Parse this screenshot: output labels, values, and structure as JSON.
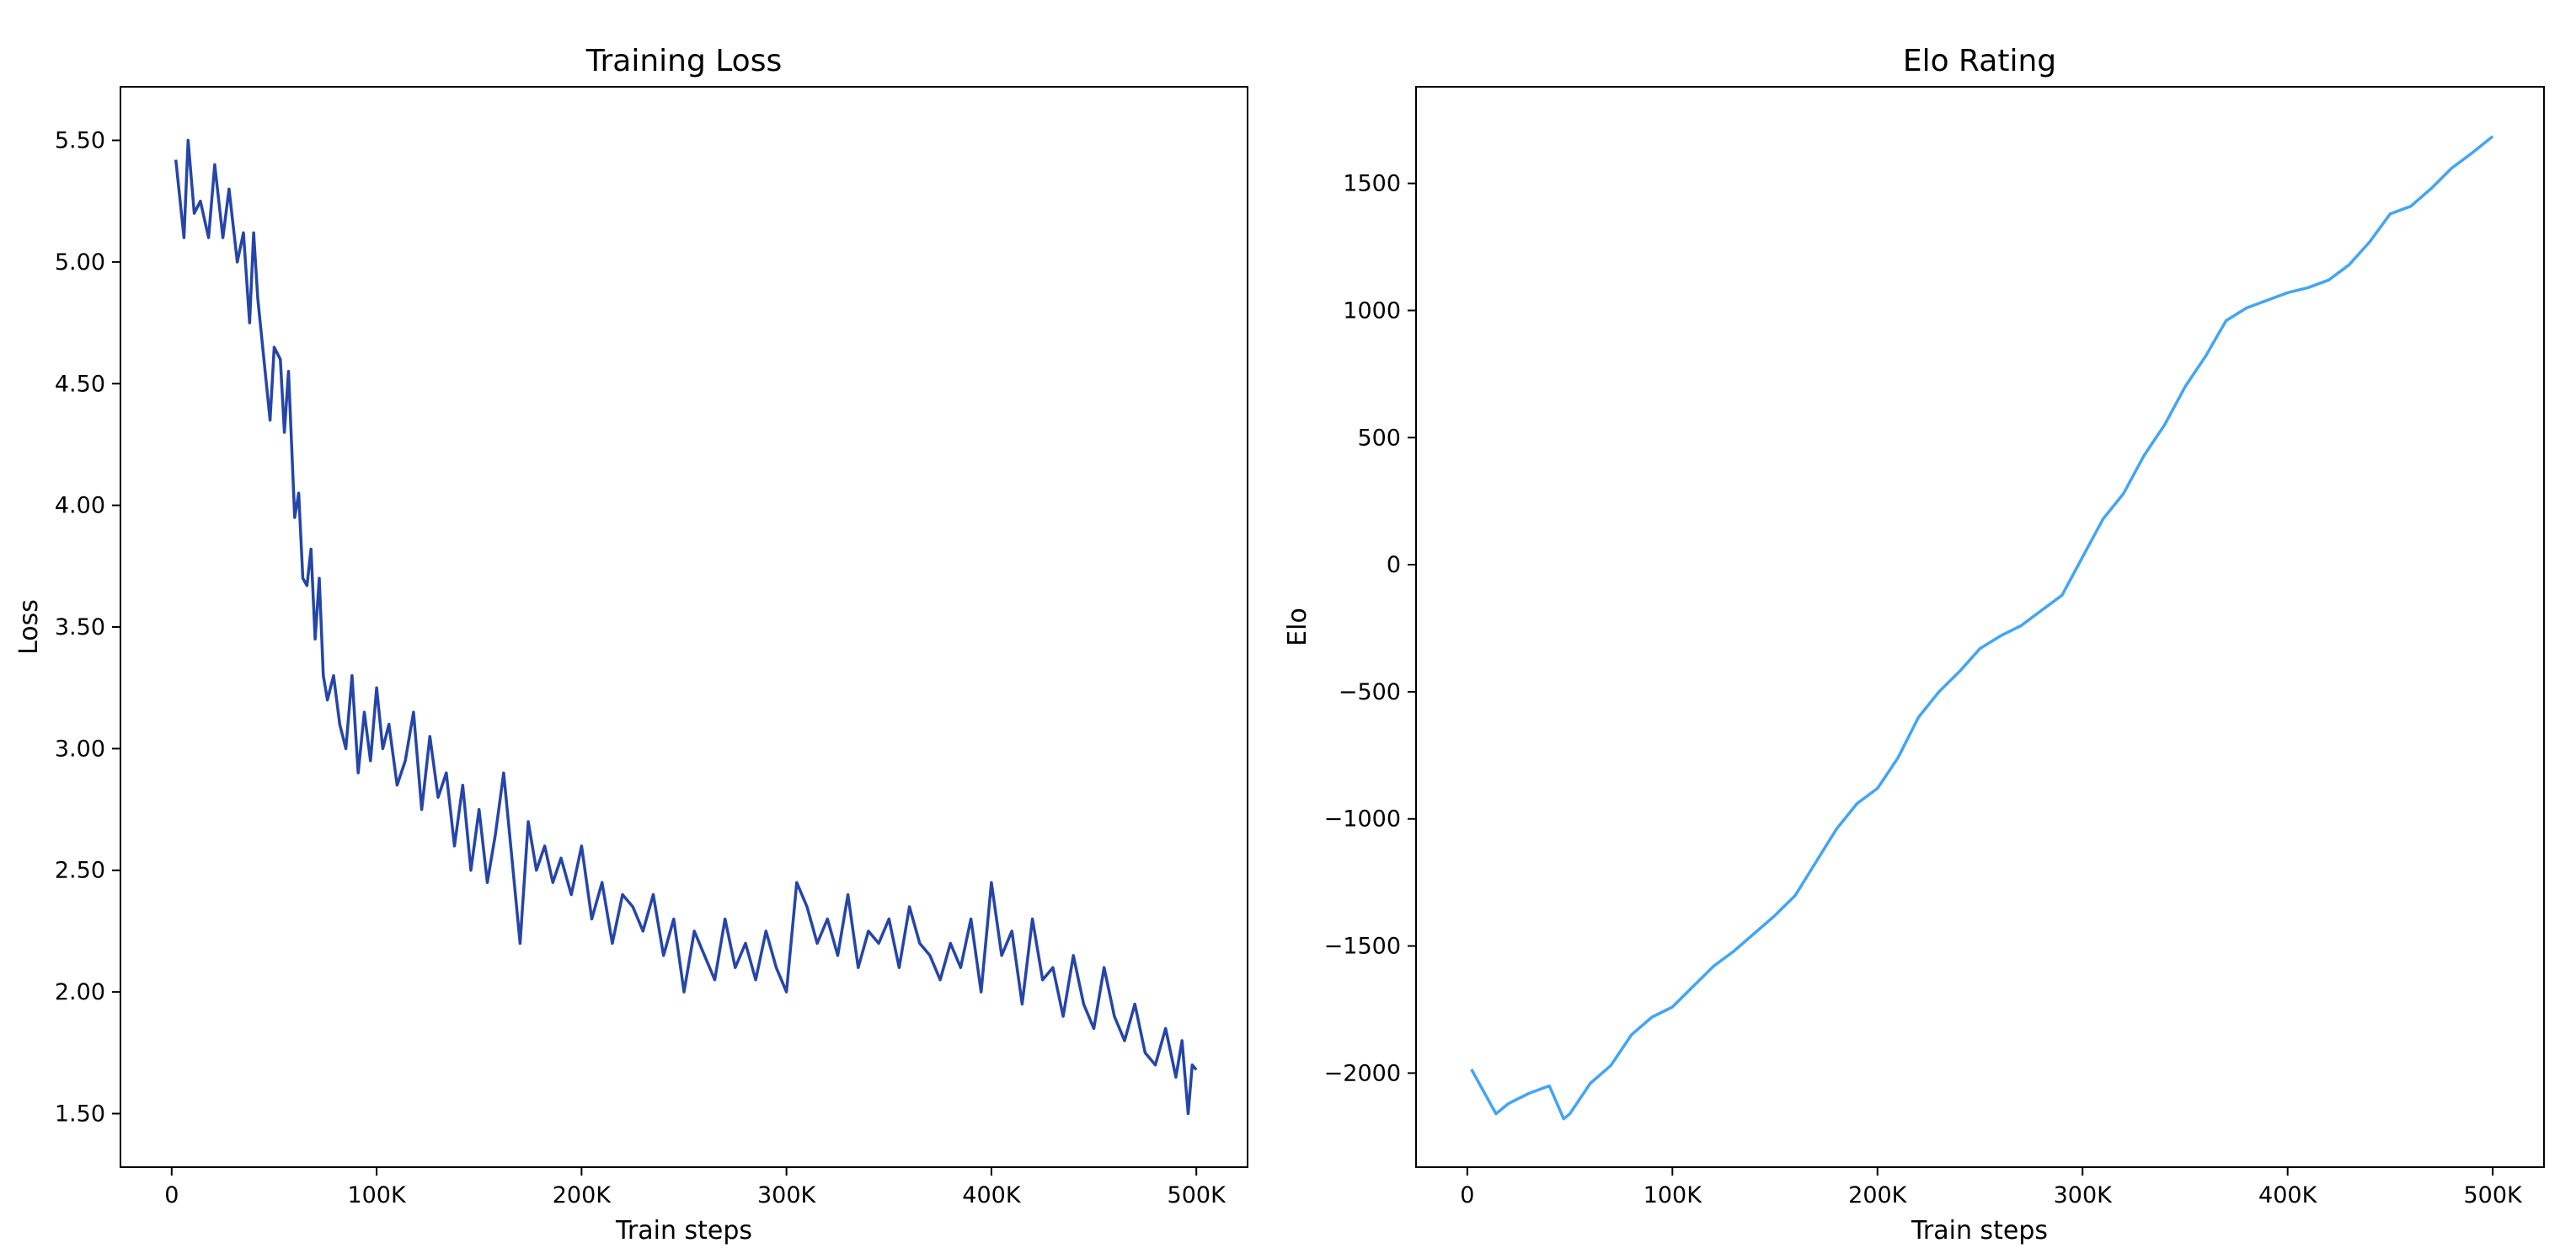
{
  "chart_data": [
    {
      "type": "line",
      "title": "Training Loss",
      "xlabel": "Train steps",
      "ylabel": "Loss",
      "xlim": [
        -25000,
        525000
      ],
      "ylim": [
        1.28,
        5.72
      ],
      "xticks": [
        0,
        100000,
        200000,
        300000,
        400000,
        500000
      ],
      "xtick_labels": [
        "0",
        "100K",
        "200K",
        "300K",
        "400K",
        "500K"
      ],
      "yticks": [
        1.5,
        2.0,
        2.5,
        3.0,
        3.5,
        4.0,
        4.5,
        5.0,
        5.5
      ],
      "ytick_labels": [
        "1.50",
        "2.00",
        "2.50",
        "3.00",
        "3.50",
        "4.00",
        "4.50",
        "5.00",
        "5.50"
      ],
      "grid": false,
      "color": "#2545a8",
      "series": [
        {
          "x": [
            2000,
            6000,
            8000,
            11000,
            14000,
            18000,
            21000,
            25000,
            28000,
            32000,
            35000,
            38000,
            40000,
            42000,
            45000,
            48000,
            50000,
            53000,
            55000,
            57000,
            60000,
            62000,
            64000,
            66000,
            68000,
            70000,
            72000,
            74000,
            76000,
            79000,
            82000,
            85000,
            88000,
            91000,
            94000,
            97000,
            100000,
            103000,
            106000,
            110000,
            114000,
            118000,
            122000,
            126000,
            130000,
            134000,
            138000,
            142000,
            146000,
            150000,
            154000,
            158000,
            162000,
            166000,
            170000,
            174000,
            178000,
            182000,
            186000,
            190000,
            195000,
            200000,
            205000,
            210000,
            215000,
            220000,
            225000,
            230000,
            235000,
            240000,
            245000,
            250000,
            255000,
            260000,
            265000,
            270000,
            275000,
            280000,
            285000,
            290000,
            295000,
            300000,
            305000,
            310000,
            315000,
            320000,
            325000,
            330000,
            335000,
            340000,
            345000,
            350000,
            355000,
            360000,
            365000,
            370000,
            375000,
            380000,
            385000,
            390000,
            395000,
            400000,
            405000,
            410000,
            415000,
            420000,
            425000,
            430000,
            435000,
            440000,
            445000,
            450000,
            455000,
            460000,
            465000,
            470000,
            475000,
            480000,
            485000,
            490000,
            493000,
            496000,
            498000,
            500000
          ],
          "values": [
            5.42,
            5.1,
            5.5,
            5.2,
            5.25,
            5.1,
            5.4,
            5.1,
            5.3,
            5.0,
            5.12,
            4.75,
            5.12,
            4.85,
            4.6,
            4.35,
            4.65,
            4.6,
            4.3,
            4.55,
            3.95,
            4.05,
            3.7,
            3.67,
            3.82,
            3.45,
            3.7,
            3.3,
            3.2,
            3.3,
            3.1,
            3.0,
            3.3,
            2.9,
            3.15,
            2.95,
            3.25,
            3.0,
            3.1,
            2.85,
            2.95,
            3.15,
            2.75,
            3.05,
            2.8,
            2.9,
            2.6,
            2.85,
            2.5,
            2.75,
            2.45,
            2.65,
            2.9,
            2.55,
            2.2,
            2.7,
            2.5,
            2.6,
            2.45,
            2.55,
            2.4,
            2.6,
            2.3,
            2.45,
            2.2,
            2.4,
            2.35,
            2.25,
            2.4,
            2.15,
            2.3,
            2.0,
            2.25,
            2.15,
            2.05,
            2.3,
            2.1,
            2.2,
            2.05,
            2.25,
            2.1,
            2.0,
            2.45,
            2.35,
            2.2,
            2.3,
            2.15,
            2.4,
            2.1,
            2.25,
            2.2,
            2.3,
            2.1,
            2.35,
            2.2,
            2.15,
            2.05,
            2.2,
            2.1,
            2.3,
            2.0,
            2.45,
            2.15,
            2.25,
            1.95,
            2.3,
            2.05,
            2.1,
            1.9,
            2.15,
            1.95,
            1.85,
            2.1,
            1.9,
            1.8,
            1.95,
            1.75,
            1.7,
            1.85,
            1.65,
            1.8,
            1.5,
            1.7,
            1.68
          ]
        }
      ]
    },
    {
      "type": "line",
      "title": "Elo Rating",
      "xlabel": "Train steps",
      "ylabel": "Elo",
      "xlim": [
        -25000,
        525000
      ],
      "ylim": [
        -2370,
        1880
      ],
      "xticks": [
        0,
        100000,
        200000,
        300000,
        400000,
        500000
      ],
      "xtick_labels": [
        "0",
        "100K",
        "200K",
        "300K",
        "400K",
        "500K"
      ],
      "yticks": [
        -2000,
        -1500,
        -1000,
        -500,
        0,
        500,
        1000,
        1500
      ],
      "ytick_labels": [
        "−2000",
        "−1500",
        "−1000",
        "−500",
        "0",
        "500",
        "1000",
        "1500"
      ],
      "grid": false,
      "color": "#42a5f5",
      "series": [
        {
          "x": [
            2000,
            14000,
            20000,
            30000,
            40000,
            47000,
            50000,
            60000,
            70000,
            80000,
            90000,
            100000,
            110000,
            120000,
            130000,
            140000,
            150000,
            160000,
            170000,
            180000,
            190000,
            200000,
            210000,
            220000,
            230000,
            240000,
            250000,
            260000,
            270000,
            280000,
            290000,
            300000,
            310000,
            320000,
            330000,
            340000,
            350000,
            360000,
            370000,
            380000,
            390000,
            400000,
            410000,
            420000,
            430000,
            440000,
            450000,
            460000,
            470000,
            480000,
            490000,
            500000
          ],
          "values": [
            -1985,
            -2160,
            -2120,
            -2080,
            -2050,
            -2180,
            -2160,
            -2040,
            -1970,
            -1850,
            -1780,
            -1740,
            -1660,
            -1580,
            -1520,
            -1450,
            -1380,
            -1300,
            -1170,
            -1040,
            -940,
            -880,
            -760,
            -600,
            -500,
            -420,
            -330,
            -280,
            -240,
            -180,
            -120,
            30,
            180,
            280,
            430,
            550,
            700,
            820,
            960,
            1010,
            1040,
            1070,
            1090,
            1120,
            1180,
            1270,
            1380,
            1410,
            1480,
            1560,
            1620,
            1685
          ]
        }
      ]
    }
  ]
}
